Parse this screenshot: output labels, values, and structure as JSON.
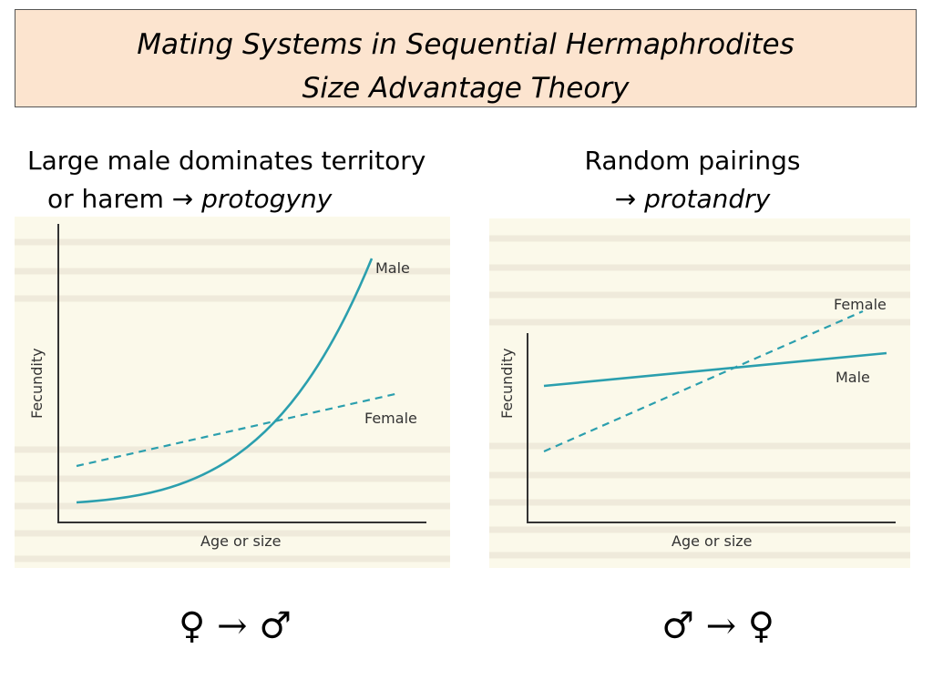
{
  "title": {
    "line1": "Mating Systems in Sequential Hermaphrodites",
    "line2": "Size Advantage Theory"
  },
  "left": {
    "caption_line1": "Large male dominates territory",
    "caption_line2_prefix": "or harem → ",
    "caption_line2_em": "protogyny",
    "symbols": "♀ → ♂",
    "chart": {
      "type": "line",
      "xlabel": "Age or size",
      "ylabel": "Fecundity",
      "series": [
        {
          "name": "Male",
          "style": "solid",
          "color": "#2b9fae",
          "shape": "exponential"
        },
        {
          "name": "Female",
          "style": "dashed",
          "color": "#2b9fae",
          "shape": "linear"
        }
      ]
    }
  },
  "right": {
    "caption_line1": "Random pairings",
    "caption_line2_prefix": "→ ",
    "caption_line2_em": "protandry",
    "symbols": "♂ → ♀",
    "chart": {
      "type": "line",
      "xlabel": "Age or size",
      "ylabel": "Fecundity",
      "series": [
        {
          "name": "Female",
          "style": "dashed",
          "color": "#2b9fae",
          "shape": "linear-steep"
        },
        {
          "name": "Male",
          "style": "solid",
          "color": "#2b9fae",
          "shape": "linear-shallow"
        }
      ]
    }
  }
}
